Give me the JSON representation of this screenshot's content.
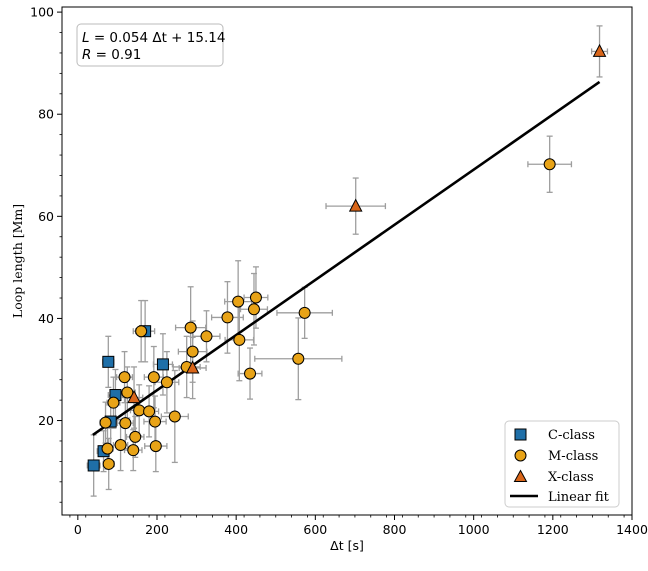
{
  "chart_data": {
    "type": "scatter",
    "xlabel": "Δt [s]",
    "ylabel": "Loop length [Mm]",
    "xlim": [
      -40,
      1400
    ],
    "ylim": [
      1.5,
      101
    ],
    "xticks": [
      0,
      200,
      400,
      600,
      800,
      1000,
      1200,
      1400
    ],
    "yticks": [
      20,
      40,
      60,
      80,
      100
    ],
    "xtick_labels": [
      "0",
      "200",
      "400",
      "600",
      "800",
      "1000",
      "1200",
      "1400"
    ],
    "ytick_labels": [
      "20",
      "40",
      "60",
      "80",
      "100"
    ],
    "annotation": {
      "line1_prefix": "L",
      "line1_rest": " = 0.054 Δt + 15.14",
      "line2_prefix": "R",
      "line2_rest": " = 0.91"
    },
    "fit": {
      "label": "Linear fit",
      "slope": 0.054,
      "intercept": 15.14,
      "x_range": [
        38,
        1318
      ],
      "color": "#000000"
    },
    "legend": {
      "position": "lower right",
      "labels": [
        "C-class",
        "M-class",
        "X-class",
        "Linear fit"
      ]
    },
    "series": [
      {
        "name": "C-class",
        "marker": "square",
        "color": "#1f6fa8",
        "points": [
          {
            "x": 40,
            "y": 11.2,
            "xerr": 16,
            "yerr": 6
          },
          {
            "x": 65,
            "y": 14.0,
            "xerr": 16,
            "yerr": 4
          },
          {
            "x": 77,
            "y": 31.5,
            "xerr": 14,
            "yerr": 5
          },
          {
            "x": 83,
            "y": 19.8,
            "xerr": 14,
            "yerr": 5
          },
          {
            "x": 95,
            "y": 25.0,
            "xerr": 18,
            "yerr": 5
          },
          {
            "x": 170,
            "y": 37.5,
            "xerr": 24,
            "yerr": 6
          },
          {
            "x": 215,
            "y": 31.0,
            "xerr": 24,
            "yerr": 6
          }
        ]
      },
      {
        "name": "M-class",
        "marker": "circle",
        "color": "#e8a317",
        "points": [
          {
            "x": 70,
            "y": 19.6,
            "xerr": 14,
            "yerr": 4
          },
          {
            "x": 75,
            "y": 14.5,
            "xerr": 14,
            "yerr": 4
          },
          {
            "x": 78,
            "y": 11.5,
            "xerr": 14,
            "yerr": 5
          },
          {
            "x": 90,
            "y": 23.5,
            "xerr": 16,
            "yerr": 5
          },
          {
            "x": 108,
            "y": 15.2,
            "xerr": 18,
            "yerr": 5
          },
          {
            "x": 118,
            "y": 28.5,
            "xerr": 20,
            "yerr": 5
          },
          {
            "x": 120,
            "y": 19.5,
            "xerr": 20,
            "yerr": 5
          },
          {
            "x": 125,
            "y": 25.5,
            "xerr": 20,
            "yerr": 5
          },
          {
            "x": 140,
            "y": 14.2,
            "xerr": 22,
            "yerr": 4
          },
          {
            "x": 145,
            "y": 16.8,
            "xerr": 22,
            "yerr": 4
          },
          {
            "x": 155,
            "y": 22.0,
            "xerr": 22,
            "yerr": 5
          },
          {
            "x": 160,
            "y": 37.5,
            "xerr": 20,
            "yerr": 6
          },
          {
            "x": 180,
            "y": 21.8,
            "xerr": 24,
            "yerr": 5
          },
          {
            "x": 192,
            "y": 28.5,
            "xerr": 24,
            "yerr": 6
          },
          {
            "x": 195,
            "y": 19.8,
            "xerr": 28,
            "yerr": 5
          },
          {
            "x": 197,
            "y": 15.0,
            "xerr": 28,
            "yerr": 5
          },
          {
            "x": 225,
            "y": 27.5,
            "xerr": 30,
            "yerr": 6
          },
          {
            "x": 245,
            "y": 20.8,
            "xerr": 34,
            "yerr": 9
          },
          {
            "x": 275,
            "y": 30.5,
            "xerr": 34,
            "yerr": 6
          },
          {
            "x": 285,
            "y": 38.2,
            "xerr": 38,
            "yerr": 8
          },
          {
            "x": 290,
            "y": 33.5,
            "xerr": 36,
            "yerr": 6
          },
          {
            "x": 325,
            "y": 36.5,
            "xerr": 34,
            "yerr": 5
          },
          {
            "x": 378,
            "y": 40.2,
            "xerr": 40,
            "yerr": 7
          },
          {
            "x": 405,
            "y": 43.3,
            "xerr": 34,
            "yerr": 8
          },
          {
            "x": 408,
            "y": 35.8,
            "xerr": 36,
            "yerr": 8
          },
          {
            "x": 435,
            "y": 29.2,
            "xerr": 30,
            "yerr": 5
          },
          {
            "x": 445,
            "y": 41.8,
            "xerr": 34,
            "yerr": 7
          },
          {
            "x": 450,
            "y": 44.1,
            "xerr": 30,
            "yerr": 6
          },
          {
            "x": 557,
            "y": 32.1,
            "xerr": 110,
            "yerr": 8
          },
          {
            "x": 573,
            "y": 41.1,
            "xerr": 70,
            "yerr": 5
          },
          {
            "x": 1192,
            "y": 70.2,
            "xerr": 55,
            "yerr": 5.5
          }
        ]
      },
      {
        "name": "X-class",
        "marker": "triangle",
        "color": "#d9661a",
        "points": [
          {
            "x": 142,
            "y": 24.5,
            "xerr": 22,
            "yerr": 6
          },
          {
            "x": 290,
            "y": 30.3,
            "xerr": 34,
            "yerr": 6
          },
          {
            "x": 702,
            "y": 62.0,
            "xerr": 75,
            "yerr": 5.5
          },
          {
            "x": 1318,
            "y": 92.3,
            "xerr": 20,
            "yerr": 5
          }
        ]
      }
    ]
  }
}
